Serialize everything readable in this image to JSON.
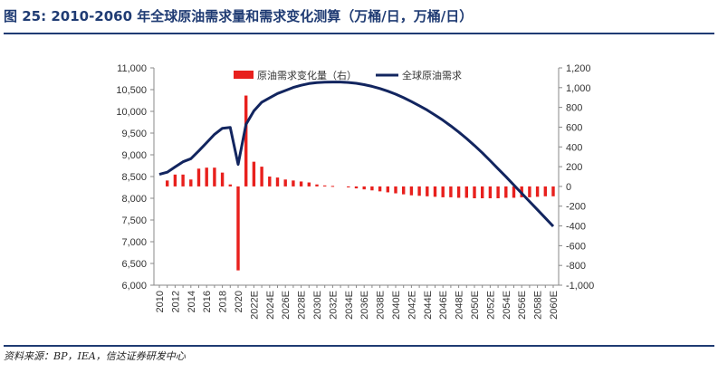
{
  "figure": {
    "title": "图 25:  2010-2060 年全球原油需求量和需求变化测算（万桶/日，万桶/日）",
    "source": "资料来源：BP，IEA，信达证券研发中心"
  },
  "colors": {
    "bar": "#e8201d",
    "line": "#12255f",
    "frame": "#1f3b73"
  },
  "chart_data": {
    "type": "bar+line",
    "x": [
      "2010",
      "2011",
      "2012",
      "2013",
      "2014",
      "2015",
      "2016",
      "2017",
      "2018",
      "2019",
      "2020",
      "2021",
      "2022E",
      "2023E",
      "2024E",
      "2025E",
      "2026E",
      "2027E",
      "2028E",
      "2029E",
      "2030E",
      "2031E",
      "2032E",
      "2033E",
      "2034E",
      "2035E",
      "2036E",
      "2037E",
      "2038E",
      "2039E",
      "2040E",
      "2041E",
      "2042E",
      "2043E",
      "2044E",
      "2045E",
      "2046E",
      "2047E",
      "2048E",
      "2049E",
      "2050E",
      "2051E",
      "2052E",
      "2053E",
      "2054E",
      "2055E",
      "2056E",
      "2057E",
      "2058E",
      "2059E",
      "2060E"
    ],
    "x_tick_labels": [
      "2010",
      "2012",
      "2014",
      "2016",
      "2018",
      "2020",
      "2022E",
      "2024E",
      "2026E",
      "2028E",
      "2030E",
      "2032E",
      "2034E",
      "2036E",
      "2038E",
      "2040E",
      "2042E",
      "2044E",
      "2046E",
      "2048E",
      "2050E",
      "2052E",
      "2054E",
      "2056E",
      "2058E",
      "2060E"
    ],
    "series": [
      {
        "name": "原油需求变化量（右）",
        "type": "bar",
        "axis": "right",
        "values": [
          null,
          60,
          120,
          120,
          70,
          180,
          190,
          190,
          140,
          20,
          -850,
          920,
          250,
          200,
          100,
          90,
          70,
          60,
          50,
          40,
          20,
          10,
          5,
          0,
          -10,
          -20,
          -30,
          -40,
          -50,
          -60,
          -70,
          -80,
          -90,
          -95,
          -100,
          -105,
          -110,
          -110,
          -115,
          -115,
          -120,
          -120,
          -120,
          -120,
          -115,
          -115,
          -110,
          -110,
          -105,
          -100,
          -100
        ]
      },
      {
        "name": "全球原油需求",
        "type": "line",
        "axis": "left",
        "values": [
          8550,
          8600,
          8720,
          8840,
          8910,
          9090,
          9280,
          9470,
          9610,
          9630,
          8780,
          9700,
          10010,
          10210,
          10310,
          10410,
          10480,
          10550,
          10600,
          10640,
          10660,
          10670,
          10675,
          10675,
          10665,
          10645,
          10615,
          10575,
          10525,
          10465,
          10395,
          10315,
          10225,
          10130,
          10030,
          9915,
          9795,
          9665,
          9525,
          9375,
          9215,
          9045,
          8865,
          8680,
          8495,
          8305,
          8115,
          7925,
          7735,
          7545,
          7355
        ]
      }
    ],
    "y_left": {
      "min": 6000,
      "max": 11000,
      "step": 500,
      "tick_labels": [
        "6,000",
        "6,500",
        "7,000",
        "7,500",
        "8,000",
        "8,500",
        "9,000",
        "9,500",
        "10,000",
        "10,500",
        "11,000"
      ]
    },
    "y_right": {
      "min": -1000,
      "max": 1200,
      "step": 200,
      "tick_labels": [
        "-1,000",
        "-800",
        "-600",
        "-400",
        "-200",
        "0",
        "200",
        "400",
        "600",
        "800",
        "1,000",
        "1,200"
      ]
    },
    "legend": {
      "placement": "top-center"
    },
    "grid": false
  }
}
